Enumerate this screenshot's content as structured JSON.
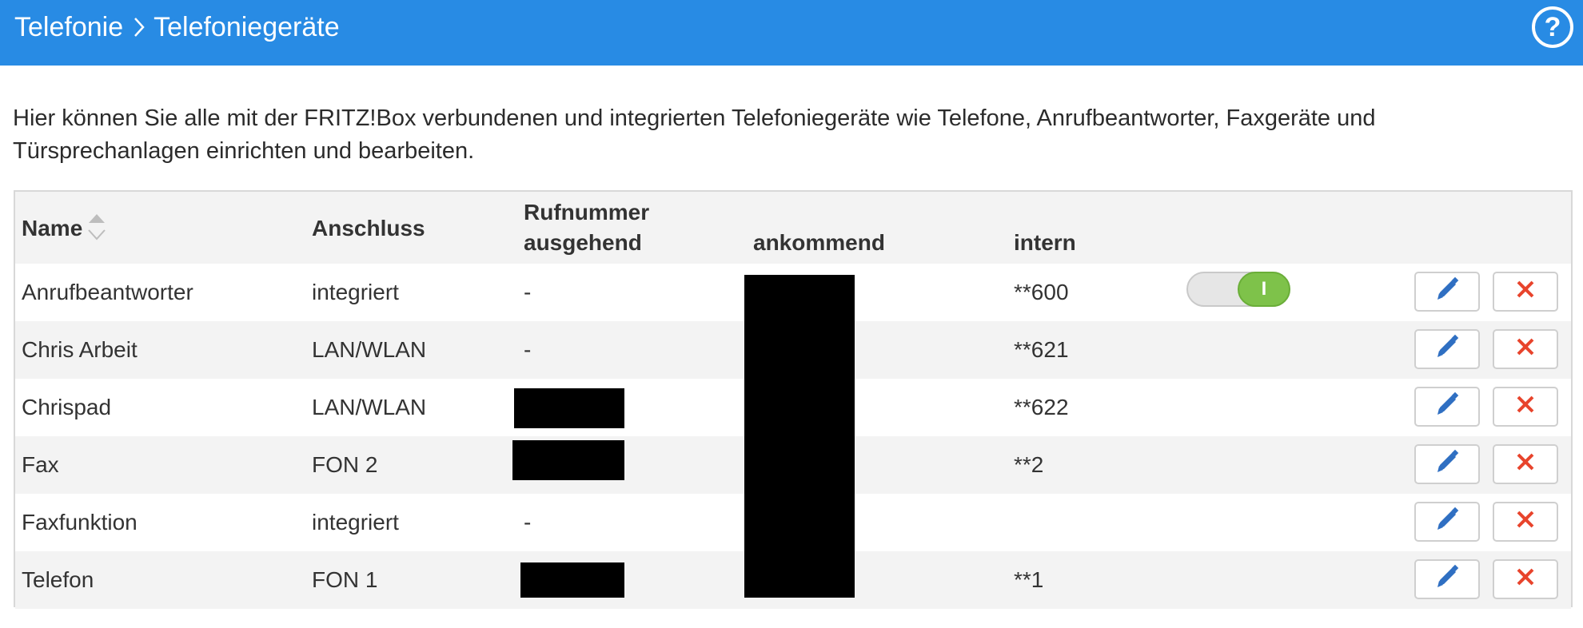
{
  "header": {
    "crumbs": [
      "Telefonie",
      "Telefoniegeräte"
    ],
    "help_label": "?"
  },
  "intro_text": "Hier können Sie alle mit der FRITZ!Box verbundenen und integrierten Telefoniegeräte wie Telefone, Anrufbeantworter, Faxgeräte und Türsprechanlagen einrichten und bearbeiten.",
  "table": {
    "columns": {
      "name": "Name",
      "anschluss": "Anschluss",
      "rufnummer": "Rufnummer",
      "ausgehend": "ausgehend",
      "ankommend": "ankommend",
      "intern": "intern"
    },
    "rows": [
      {
        "name": "Anrufbeantworter",
        "anschluss": "integriert",
        "ausgehend": "-",
        "intern": "**600",
        "has_toggle": true,
        "toggle_on": true
      },
      {
        "name": "Chris Arbeit",
        "anschluss": "LAN/WLAN",
        "ausgehend": "-",
        "intern": "**621"
      },
      {
        "name": "Chrispad",
        "anschluss": "LAN/WLAN",
        "ausgehend": "",
        "intern": "**622"
      },
      {
        "name": "Fax",
        "anschluss": "FON 2",
        "ausgehend": "",
        "intern": "**2"
      },
      {
        "name": "Faxfunktion",
        "anschluss": "integriert",
        "ausgehend": "-",
        "intern": ""
      },
      {
        "name": "Telefon",
        "anschluss": "FON 1",
        "ausgehend": "",
        "intern": "**1"
      }
    ],
    "toggle_on_label": "I"
  },
  "colors": {
    "header_bg": "#288be4",
    "toggle_on": "#7ec24a",
    "delete_icon": "#e8442c",
    "edit_icon": "#2f6fc2"
  },
  "icons": {
    "breadcrumb_separator": "chevron-right-icon",
    "help": "help-circle-icon",
    "sort": "sort-icon",
    "edit": "pencil-icon",
    "delete": "x-icon"
  }
}
